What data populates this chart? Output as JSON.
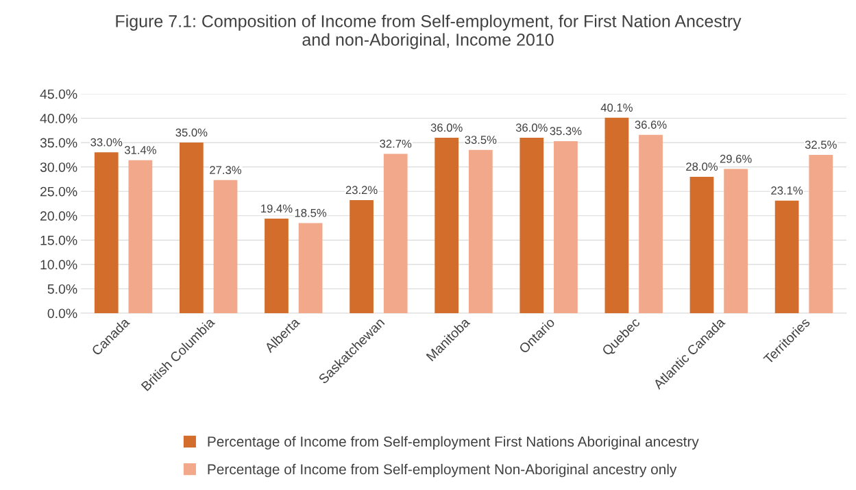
{
  "chart_data": {
    "type": "bar",
    "title": "Figure 7.1: Composition of Income from Self-employment, for First Nation Ancestry\nand non-Aboriginal, Income 2010",
    "categories": [
      "Canada",
      "British Columbia",
      "Alberta",
      "Saskatchewan",
      "Manitoba",
      "Ontario",
      "Quebec",
      "Atlantic Canada",
      "Territories"
    ],
    "series": [
      {
        "name": "Percentage of Income from Self-employment First Nations Aboriginal ancestry",
        "color": "#d26d2b",
        "values": [
          33.0,
          35.0,
          19.4,
          23.2,
          36.0,
          36.0,
          40.1,
          28.0,
          23.1
        ],
        "value_labels": [
          "33.0%",
          "35.0%",
          "19.4%",
          "23.2%",
          "36.0%",
          "36.0%",
          "40.1%",
          "28.0%",
          "23.1%"
        ]
      },
      {
        "name": "Percentage of Income from Self-employment Non-Aboriginal ancestry only",
        "color": "#f2a88a",
        "values": [
          31.4,
          27.3,
          18.5,
          32.7,
          33.5,
          35.3,
          36.6,
          29.6,
          32.5
        ],
        "value_labels": [
          "31.4%",
          "27.3%",
          "18.5%",
          "32.7%",
          "33.5%",
          "35.3%",
          "36.6%",
          "29.6%",
          "32.5%"
        ]
      }
    ],
    "ylim": [
      0,
      45
    ],
    "yticks": [
      {
        "value": 0,
        "label": "0.0%"
      },
      {
        "value": 5,
        "label": "5.0%"
      },
      {
        "value": 10,
        "label": "10.0%"
      },
      {
        "value": 15,
        "label": "15.0%"
      },
      {
        "value": 20,
        "label": "20.0%"
      },
      {
        "value": 25,
        "label": "25.0%"
      },
      {
        "value": 30,
        "label": "30.0%"
      },
      {
        "value": 35,
        "label": "35.0%"
      },
      {
        "value": 40,
        "label": "40.0%"
      },
      {
        "value": 45,
        "label": "45.0%"
      }
    ],
    "grid": "y",
    "legend": "bottom"
  }
}
